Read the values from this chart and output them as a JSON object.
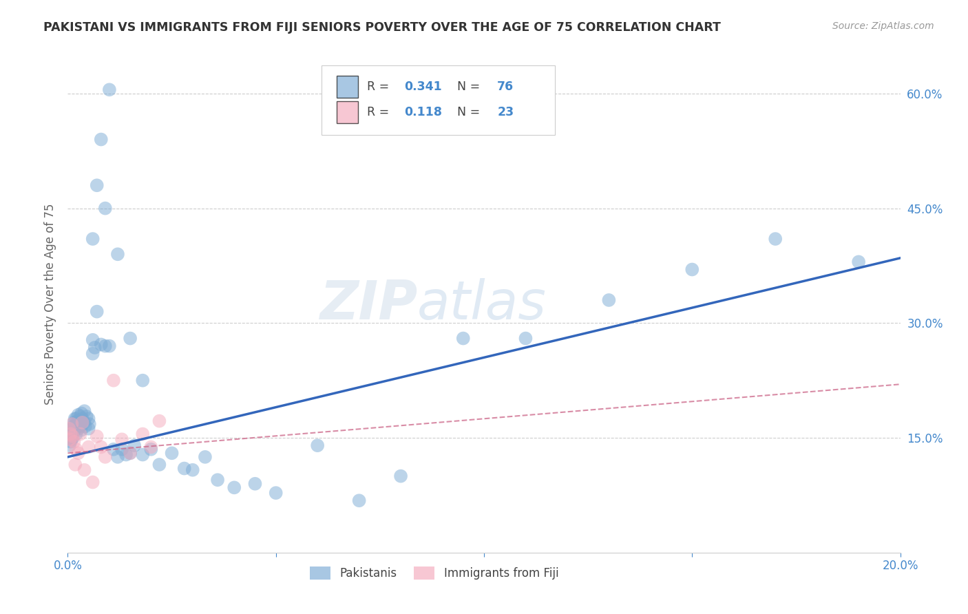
{
  "title": "PAKISTANI VS IMMIGRANTS FROM FIJI SENIORS POVERTY OVER THE AGE OF 75 CORRELATION CHART",
  "source_text": "Source: ZipAtlas.com",
  "ylabel": "Seniors Poverty Over the Age of 75",
  "xlim": [
    0.0,
    0.2
  ],
  "ylim": [
    0.0,
    0.65
  ],
  "yticks_right": [
    0.15,
    0.3,
    0.45,
    0.6
  ],
  "ytick_labels_right": [
    "15.0%",
    "30.0%",
    "45.0%",
    "60.0%"
  ],
  "blue_color": "#7AAAD4",
  "pink_color": "#F4AABC",
  "trend_blue": "#3366BB",
  "trend_pink": "#CC6688",
  "pakistanis_label": "Pakistanis",
  "fiji_label": "Immigrants from Fiji",
  "watermark_zip": "ZIP",
  "watermark_atlas": "atlas",
  "blue_r_val": "0.341",
  "blue_n_val": "76",
  "pink_r_val": "0.118",
  "pink_n_val": "23",
  "grid_color": "#CCCCCC",
  "bg_color": "#FFFFFF",
  "axis_label_color": "#666666",
  "title_color": "#333333",
  "right_tick_color": "#4488CC",
  "legend_text_color": "#444444",
  "blue_trend_x0": 0.0,
  "blue_trend_x1": 0.2,
  "blue_trend_y0": 0.125,
  "blue_trend_y1": 0.385,
  "pink_trend_x0": 0.0,
  "pink_trend_x1": 0.2,
  "pink_trend_y0": 0.13,
  "pink_trend_y1": 0.22,
  "blue_scatter_x": [
    0.0003,
    0.0004,
    0.0005,
    0.0006,
    0.0007,
    0.0008,
    0.0009,
    0.001,
    0.001,
    0.0012,
    0.0013,
    0.0014,
    0.0015,
    0.0016,
    0.0017,
    0.0018,
    0.002,
    0.002,
    0.0022,
    0.0023,
    0.0025,
    0.0026,
    0.0028,
    0.003,
    0.003,
    0.0032,
    0.0033,
    0.0035,
    0.004,
    0.004,
    0.0042,
    0.0045,
    0.005,
    0.005,
    0.0052,
    0.006,
    0.006,
    0.0065,
    0.007,
    0.008,
    0.009,
    0.01,
    0.011,
    0.012,
    0.013,
    0.014,
    0.015,
    0.016,
    0.018,
    0.02,
    0.022,
    0.025,
    0.028,
    0.03,
    0.033,
    0.036,
    0.04,
    0.045,
    0.05,
    0.06,
    0.07,
    0.08,
    0.095,
    0.11,
    0.13,
    0.15,
    0.17,
    0.19,
    0.006,
    0.007,
    0.008,
    0.009,
    0.01,
    0.012,
    0.015,
    0.018
  ],
  "blue_scatter_y": [
    0.155,
    0.14,
    0.16,
    0.15,
    0.145,
    0.155,
    0.148,
    0.155,
    0.162,
    0.15,
    0.165,
    0.158,
    0.17,
    0.16,
    0.175,
    0.165,
    0.155,
    0.175,
    0.168,
    0.172,
    0.18,
    0.162,
    0.17,
    0.165,
    0.178,
    0.16,
    0.182,
    0.175,
    0.17,
    0.185,
    0.165,
    0.178,
    0.162,
    0.175,
    0.168,
    0.26,
    0.278,
    0.268,
    0.315,
    0.272,
    0.27,
    0.27,
    0.135,
    0.125,
    0.135,
    0.128,
    0.13,
    0.14,
    0.128,
    0.135,
    0.115,
    0.13,
    0.11,
    0.108,
    0.125,
    0.095,
    0.085,
    0.09,
    0.078,
    0.14,
    0.068,
    0.1,
    0.28,
    0.28,
    0.33,
    0.37,
    0.41,
    0.38,
    0.41,
    0.48,
    0.54,
    0.45,
    0.605,
    0.39,
    0.28,
    0.225
  ],
  "pink_scatter_x": [
    0.0003,
    0.0005,
    0.0007,
    0.001,
    0.0012,
    0.0015,
    0.0018,
    0.002,
    0.0025,
    0.003,
    0.0035,
    0.004,
    0.005,
    0.006,
    0.007,
    0.008,
    0.009,
    0.011,
    0.013,
    0.015,
    0.018,
    0.02,
    0.022
  ],
  "pink_scatter_y": [
    0.162,
    0.148,
    0.155,
    0.168,
    0.152,
    0.145,
    0.115,
    0.135,
    0.13,
    0.155,
    0.17,
    0.108,
    0.138,
    0.092,
    0.152,
    0.138,
    0.125,
    0.225,
    0.148,
    0.13,
    0.155,
    0.138,
    0.172
  ]
}
